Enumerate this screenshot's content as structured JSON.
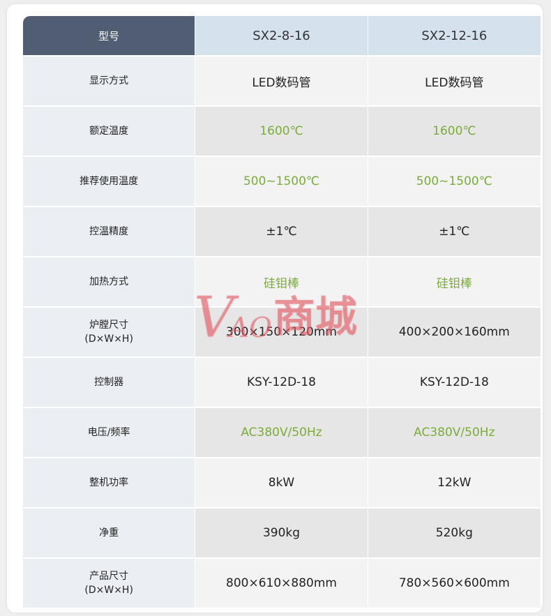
{
  "table": {
    "header": {
      "label": "型号",
      "models": [
        "SX2-8-16",
        "SX2-12-16"
      ]
    },
    "rows": [
      {
        "label": "显示方式",
        "values": [
          "LED数码管",
          "LED数码管"
        ],
        "green": false
      },
      {
        "label": "额定温度",
        "values": [
          "1600℃",
          "1600℃"
        ],
        "green": true
      },
      {
        "label": "推荐使用温度",
        "values": [
          "500~1500℃",
          "500~1500℃"
        ],
        "green": true
      },
      {
        "label": "控温精度",
        "values": [
          "±1℃",
          "±1℃"
        ],
        "green": false
      },
      {
        "label": "加热方式",
        "values": [
          "硅钼棒",
          "硅钼棒"
        ],
        "green": true
      },
      {
        "label": "炉膛尺寸\n(D×W×H)",
        "values": [
          "300×150×120mm",
          "400×200×160mm"
        ],
        "green": false
      },
      {
        "label": "控制器",
        "values": [
          "KSY-12D-18",
          "KSY-12D-18"
        ],
        "green": false
      },
      {
        "label": "电压/频率",
        "values": [
          "AC380V/50Hz",
          "AC380V/50Hz"
        ],
        "green": true
      },
      {
        "label": "整机功率",
        "values": [
          "8kW",
          "12kW"
        ],
        "green": false
      },
      {
        "label": "净重",
        "values": [
          "390kg",
          "520kg"
        ],
        "green": false
      },
      {
        "label": "产品尺寸\n(D×W×H)",
        "values": [
          "800×610×880mm",
          "780×560×600mm"
        ],
        "green": false
      }
    ]
  },
  "watermark": {
    "v": "V",
    "ao": "AO",
    "cn": "商城"
  },
  "colors": {
    "header_label_bg": "#505d73",
    "header_bg": "#d6e1ee",
    "accent_green": "#7aac3a",
    "watermark": "#e25a64"
  }
}
